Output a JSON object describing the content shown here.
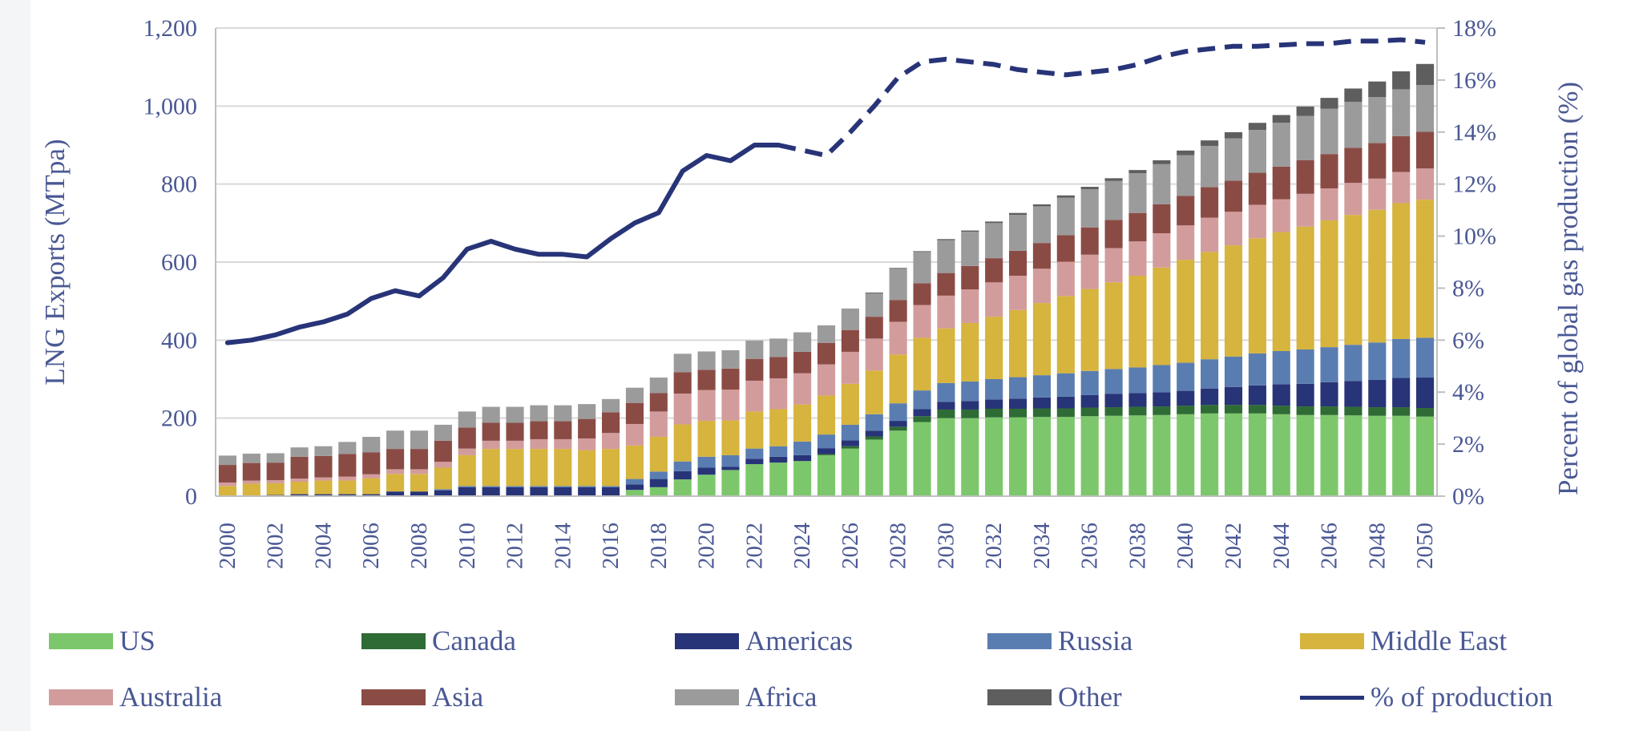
{
  "chart_data": {
    "type": "bar",
    "stacked": true,
    "xlabel": "",
    "ylabel": "LNG Exports (MTpa)",
    "y2label": "Percent of global gas production (%)",
    "ylim": [
      0,
      1200
    ],
    "y2lim": [
      0,
      18
    ],
    "yticks": [
      "0",
      "200",
      "400",
      "600",
      "800",
      "1,000",
      "1,200"
    ],
    "y2ticks": [
      "0%",
      "2%",
      "4%",
      "6%",
      "8%",
      "10%",
      "12%",
      "14%",
      "16%",
      "18%"
    ],
    "grid": true,
    "legend_position": "bottom",
    "x": [
      2000,
      2001,
      2002,
      2003,
      2004,
      2005,
      2006,
      2007,
      2008,
      2009,
      2010,
      2011,
      2012,
      2013,
      2014,
      2015,
      2016,
      2017,
      2018,
      2019,
      2020,
      2021,
      2022,
      2023,
      2024,
      2025,
      2026,
      2027,
      2028,
      2029,
      2030,
      2031,
      2032,
      2033,
      2034,
      2035,
      2036,
      2037,
      2038,
      2039,
      2040,
      2041,
      2042,
      2043,
      2044,
      2045,
      2046,
      2047,
      2048,
      2049,
      2050
    ],
    "xtick_labels": [
      "2000",
      "2002",
      "2004",
      "2006",
      "2008",
      "2010",
      "2012",
      "2014",
      "2016",
      "2018",
      "2020",
      "2022",
      "2024",
      "2026",
      "2028",
      "2030",
      "2032",
      "2034",
      "2036",
      "2038",
      "2040",
      "2042",
      "2044",
      "2046",
      "2048",
      "2050"
    ],
    "series": [
      {
        "name": "US",
        "color": "#7cc76b",
        "values": [
          0,
          0,
          0,
          0,
          0,
          0,
          0,
          0,
          0,
          0,
          0,
          0,
          0,
          0,
          0,
          0,
          0,
          16,
          23,
          43,
          55,
          67,
          82,
          86,
          90,
          105,
          122,
          145,
          168,
          190,
          200,
          200,
          202,
          202,
          203,
          203,
          205,
          206,
          207,
          208,
          210,
          212,
          212,
          212,
          210,
          208,
          208,
          207,
          206,
          206,
          204
        ]
      },
      {
        "name": "Canada",
        "color": "#2f6b35",
        "values": [
          0,
          0,
          0,
          0,
          0,
          0,
          0,
          0,
          0,
          0,
          0,
          0,
          0,
          0,
          0,
          0,
          0,
          0,
          0,
          0,
          0,
          0,
          0,
          0,
          0,
          3,
          6,
          8,
          10,
          15,
          22,
          22,
          22,
          22,
          22,
          22,
          22,
          22,
          22,
          22,
          22,
          22,
          22,
          22,
          22,
          22,
          22,
          22,
          22,
          22,
          22
        ]
      },
      {
        "name": "Americas",
        "color": "#283478",
        "values": [
          2,
          2,
          3,
          5,
          5,
          5,
          5,
          12,
          12,
          15,
          23,
          23,
          23,
          23,
          23,
          23,
          23,
          14,
          21,
          21,
          18,
          8,
          14,
          15,
          15,
          15,
          15,
          15,
          15,
          18,
          20,
          22,
          24,
          26,
          28,
          30,
          32,
          34,
          35,
          36,
          38,
          42,
          46,
          50,
          55,
          58,
          62,
          66,
          70,
          75,
          78
        ]
      },
      {
        "name": "Russia",
        "color": "#5a7db1",
        "values": [
          0,
          0,
          0,
          0,
          0,
          0,
          0,
          0,
          0,
          3,
          3,
          3,
          3,
          3,
          3,
          3,
          3,
          14,
          19,
          25,
          28,
          30,
          26,
          27,
          35,
          35,
          40,
          42,
          45,
          48,
          48,
          50,
          52,
          55,
          57,
          60,
          62,
          64,
          66,
          70,
          72,
          75,
          78,
          82,
          85,
          88,
          90,
          93,
          96,
          100,
          102
        ]
      },
      {
        "name": "Middle East",
        "color": "#d6b43d",
        "values": [
          24,
          30,
          30,
          32,
          35,
          35,
          41,
          45,
          45,
          55,
          79,
          95,
          95,
          95,
          95,
          92,
          95,
          86,
          89,
          95,
          92,
          89,
          95,
          95,
          95,
          100,
          105,
          112,
          125,
          135,
          140,
          150,
          160,
          172,
          185,
          198,
          210,
          222,
          235,
          250,
          264,
          275,
          285,
          295,
          305,
          315,
          325,
          333,
          340,
          348,
          354
        ]
      },
      {
        "name": "Australia",
        "color": "#d39c9c",
        "values": [
          9,
          8,
          8,
          8,
          8,
          10,
          10,
          12,
          12,
          15,
          17,
          21,
          21,
          25,
          25,
          30,
          41,
          55,
          65,
          79,
          79,
          79,
          79,
          79,
          80,
          80,
          82,
          82,
          84,
          84,
          84,
          86,
          88,
          88,
          88,
          88,
          88,
          88,
          88,
          88,
          88,
          88,
          86,
          86,
          84,
          84,
          82,
          82,
          80,
          80,
          80
        ]
      },
      {
        "name": "Asia",
        "color": "#8b4b45",
        "values": [
          45,
          45,
          45,
          56,
          55,
          58,
          56,
          52,
          52,
          54,
          54,
          46,
          46,
          46,
          46,
          50,
          53,
          54,
          47,
          55,
          52,
          54,
          56,
          55,
          55,
          55,
          56,
          56,
          56,
          56,
          58,
          60,
          62,
          64,
          66,
          68,
          70,
          72,
          73,
          74,
          76,
          78,
          80,
          82,
          84,
          86,
          88,
          90,
          91,
          92,
          94
        ]
      },
      {
        "name": "Africa",
        "color": "#9b9b9b",
        "values": [
          24,
          24,
          24,
          24,
          25,
          31,
          40,
          47,
          47,
          41,
          41,
          41,
          41,
          41,
          41,
          38,
          34,
          39,
          40,
          47,
          47,
          47,
          47,
          47,
          50,
          45,
          55,
          60,
          80,
          80,
          84,
          88,
          90,
          92,
          94,
          96,
          98,
          100,
          102,
          103,
          104,
          106,
          108,
          110,
          112,
          114,
          116,
          118,
          118,
          120,
          120
        ]
      },
      {
        "name": "Other",
        "color": "#5e5e5e",
        "values": [
          0,
          0,
          0,
          0,
          0,
          0,
          0,
          0,
          0,
          0,
          0,
          0,
          0,
          0,
          0,
          0,
          0,
          0,
          0,
          0,
          0,
          0,
          0,
          0,
          0,
          0,
          0,
          2,
          2,
          2,
          3,
          3,
          4,
          5,
          5,
          6,
          6,
          7,
          8,
          10,
          12,
          14,
          16,
          18,
          20,
          24,
          28,
          34,
          40,
          46,
          54
        ]
      }
    ],
    "line": {
      "name": "% of production",
      "axis": "right",
      "color": "#283478",
      "solid_through": 2023,
      "dashed_after": 2023,
      "values": [
        5.9,
        6.0,
        6.2,
        6.5,
        6.7,
        7.0,
        7.6,
        7.9,
        7.7,
        8.4,
        9.5,
        9.8,
        9.5,
        9.3,
        9.3,
        9.2,
        9.9,
        10.5,
        10.9,
        12.5,
        13.1,
        12.9,
        13.5,
        13.5,
        13.3,
        13.1,
        14.0,
        15.0,
        16.1,
        16.7,
        16.8,
        16.7,
        16.6,
        16.4,
        16.3,
        16.2,
        16.3,
        16.4,
        16.6,
        16.9,
        17.1,
        17.2,
        17.3,
        17.3,
        17.35,
        17.4,
        17.4,
        17.5,
        17.5,
        17.55,
        17.45
      ]
    }
  },
  "legend": {
    "items": [
      {
        "label": "US",
        "kind": "bar",
        "series": 0
      },
      {
        "label": "Canada",
        "kind": "bar",
        "series": 1
      },
      {
        "label": "Americas",
        "kind": "bar",
        "series": 2
      },
      {
        "label": "Russia",
        "kind": "bar",
        "series": 3
      },
      {
        "label": "Middle East",
        "kind": "bar",
        "series": 4
      },
      {
        "label": "Australia",
        "kind": "bar",
        "series": 5
      },
      {
        "label": "Asia",
        "kind": "bar",
        "series": 6
      },
      {
        "label": "Africa",
        "kind": "bar",
        "series": 7
      },
      {
        "label": "Other",
        "kind": "bar",
        "series": 8
      },
      {
        "label": "% of production",
        "kind": "line"
      }
    ]
  },
  "colors": {
    "text": "#4a5894",
    "grid": "#d9d9d9",
    "axis": "#bfbfbf"
  }
}
